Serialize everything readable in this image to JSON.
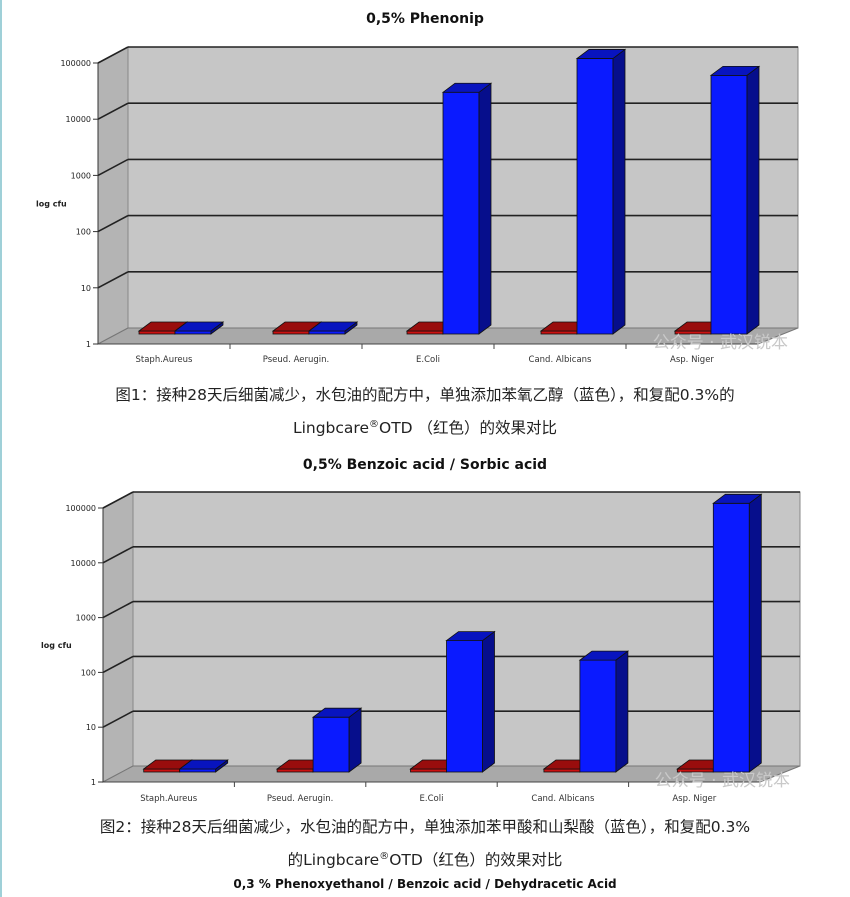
{
  "charts": [
    {
      "title": "0,5% Phenonip",
      "ylabel": "log cfu",
      "watermark": "公众号 · 武汉锐本",
      "caption": {
        "line1": "图1：接种28天后细菌减少，水包油的配方中，单独添加苯氧乙醇（蓝色），和复配0.3%的",
        "line2_pre": "Lingbcare",
        "line2_sup": "®",
        "line2_post": "OTD （红色）的效果对比"
      }
    },
    {
      "title": "0,5% Benzoic acid / Sorbic acid",
      "ylabel": "log cfu",
      "watermark": "公众号 · 武汉锐本",
      "caption": {
        "line1": "图2：接种28天后细菌减少，水包油的配方中，单独添加苯甲酸和山梨酸（蓝色），和复配0.3%",
        "line2_pre": "的Lingbcare",
        "line2_sup": "®",
        "line2_post": "OTD（红色）的效果对比"
      }
    }
  ],
  "bottom_title": "0,3 % Phenoxyethanol / Benzoic acid / Dehydracetic Acid",
  "colors": {
    "red_series": "#cc1111",
    "blue_series": "#0a1aff",
    "plot_background": "#c6c6c6",
    "gridline": "#222222"
  },
  "chart_data": [
    {
      "type": "bar",
      "title": "0,5% Phenonip",
      "categories": [
        "Staph.Aureus",
        "Pseud. Aerugin.",
        "E.Coli",
        "Cand. Albicans",
        "Asp. Niger"
      ],
      "series": [
        {
          "values": [
            1,
            1,
            1,
            1,
            1
          ],
          "color": "#cc1111"
        },
        {
          "values": [
            1,
            1,
            20000,
            80000,
            40000
          ],
          "color": "#0a1aff"
        }
      ],
      "ylabel": "log cfu",
      "yscale": "log",
      "ylim": [
        1,
        100000
      ],
      "yticks": [
        "1",
        "10",
        "100",
        "1000",
        "10000",
        "100000"
      ],
      "grid": true
    },
    {
      "type": "bar",
      "title": "0,5% Benzoic acid / Sorbic acid",
      "categories": [
        "Staph.Aureus",
        "Pseud. Aerugin.",
        "E.Coli",
        "Cand. Albicans",
        "Asp. Niger"
      ],
      "series": [
        {
          "values": [
            1,
            1,
            1,
            1,
            1
          ],
          "color": "#cc1111"
        },
        {
          "values": [
            1,
            10,
            250,
            110,
            80000
          ],
          "color": "#0a1aff"
        }
      ],
      "ylabel": "log cfu",
      "yscale": "log",
      "ylim": [
        1,
        100000
      ],
      "yticks": [
        "1",
        "10",
        "100",
        "1000",
        "10000",
        "100000"
      ],
      "grid": true
    }
  ]
}
